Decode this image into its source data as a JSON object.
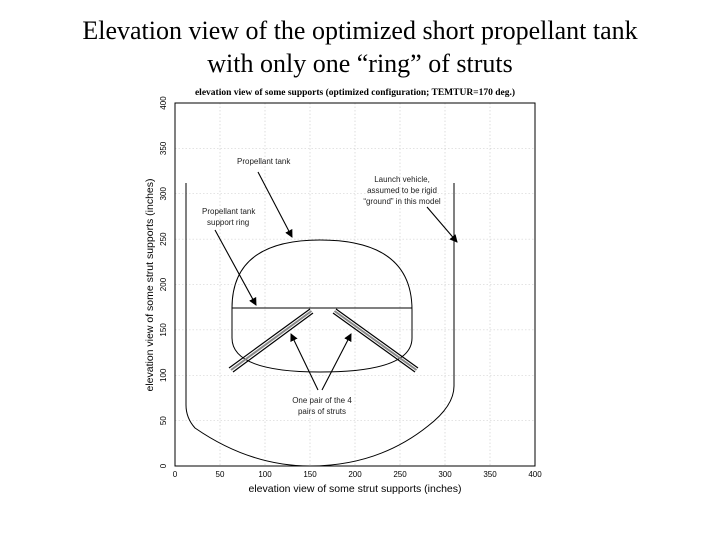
{
  "slide": {
    "title_line1": "Elevation view of the optimized short propellant tank",
    "title_line2": "with only one “ring” of struts"
  },
  "plot": {
    "title": "elevation view of some supports (optimized configuration;   TEMTUR=170 deg.)",
    "xlabel": "elevation view of some strut supports (inches)",
    "ylabel": "elevation view of some strut supports (inches)",
    "x_ticks": [
      "0",
      "50",
      "100",
      "150",
      "200",
      "250",
      "300",
      "350",
      "400"
    ],
    "y_ticks": [
      "0",
      "50",
      "100",
      "150",
      "200",
      "250",
      "300",
      "350",
      "400"
    ],
    "xlim": [
      0,
      400
    ],
    "ylim": [
      0,
      400
    ]
  },
  "annotations": {
    "tank": "Propellant tank",
    "vehicle_l1": "Launch vehicle,",
    "vehicle_l2": "assumed to be rigid",
    "vehicle_l3": "“ground” in this model",
    "ring_l1": "Propellant tank",
    "ring_l2": "support ring",
    "struts_l1": "One pair of the 4",
    "struts_l2": "pairs of struts"
  }
}
